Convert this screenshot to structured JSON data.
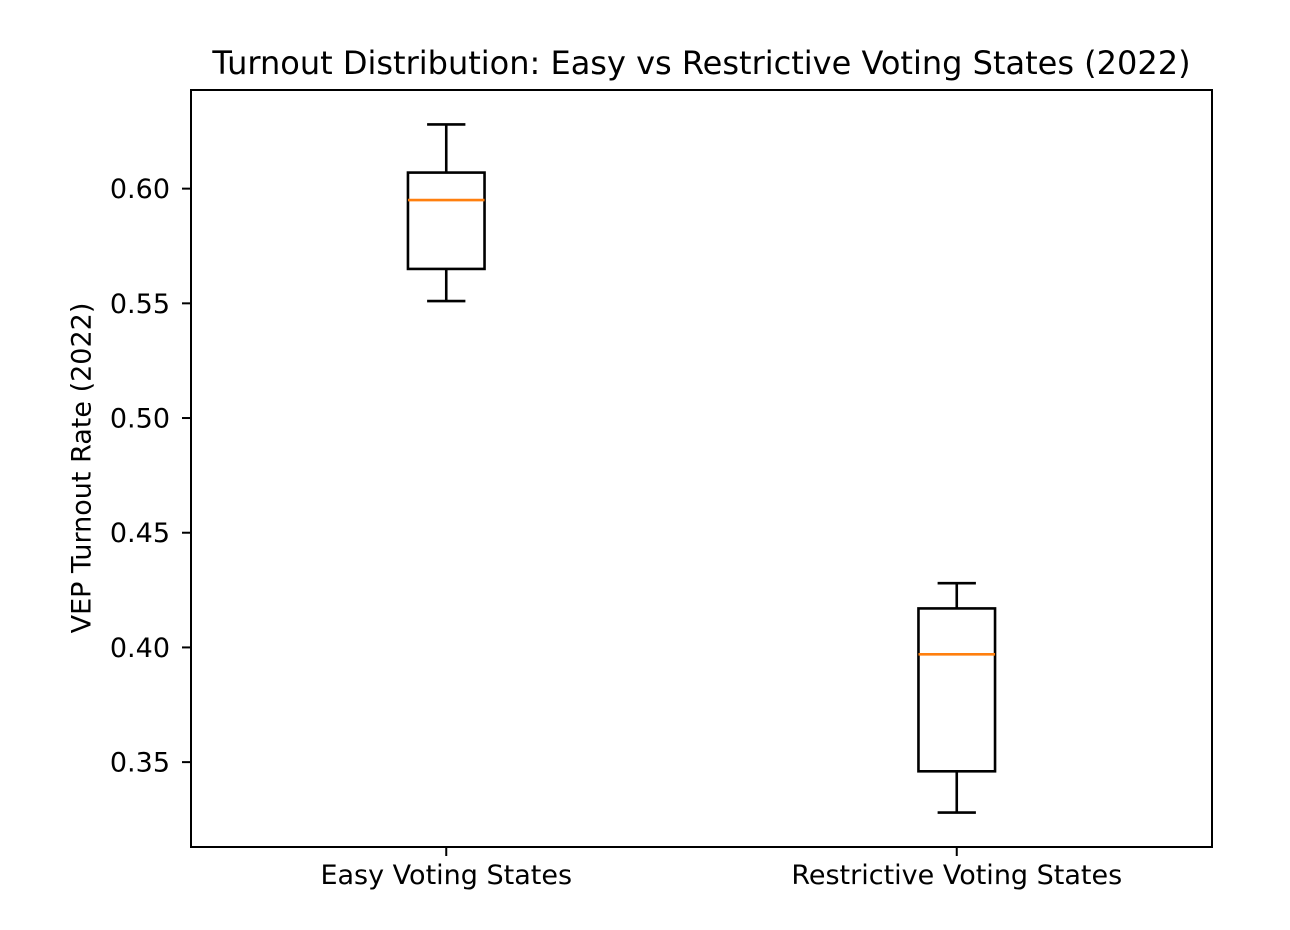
{
  "chart_data": {
    "type": "boxplot",
    "title": "Turnout Distribution: Easy vs Restrictive Voting States (2022)",
    "ylabel": "VEP Turnout Rate (2022)",
    "xlabel": "",
    "categories": [
      "Easy Voting States",
      "Restrictive Voting States"
    ],
    "series": [
      {
        "name": "Easy Voting States",
        "whisker_low": 0.551,
        "q1": 0.565,
        "median": 0.595,
        "q3": 0.607,
        "whisker_high": 0.628
      },
      {
        "name": "Restrictive Voting States",
        "whisker_low": 0.328,
        "q1": 0.346,
        "median": 0.397,
        "q3": 0.417,
        "whisker_high": 0.428
      }
    ],
    "ylim": [
      0.313,
      0.643
    ],
    "xlim": [
      0.5,
      2.5
    ],
    "yticks": [
      0.35,
      0.4,
      0.45,
      0.5,
      0.55,
      0.6
    ],
    "ytick_format_decimals": 2,
    "grid": false,
    "legend": "none",
    "box_width": 0.15,
    "cap_width": 0.075,
    "box_color": "#000000",
    "median_color": "#ff7f0e",
    "frame_color": "#000000",
    "text_color": "#000000",
    "background_color": "#ffffff"
  }
}
